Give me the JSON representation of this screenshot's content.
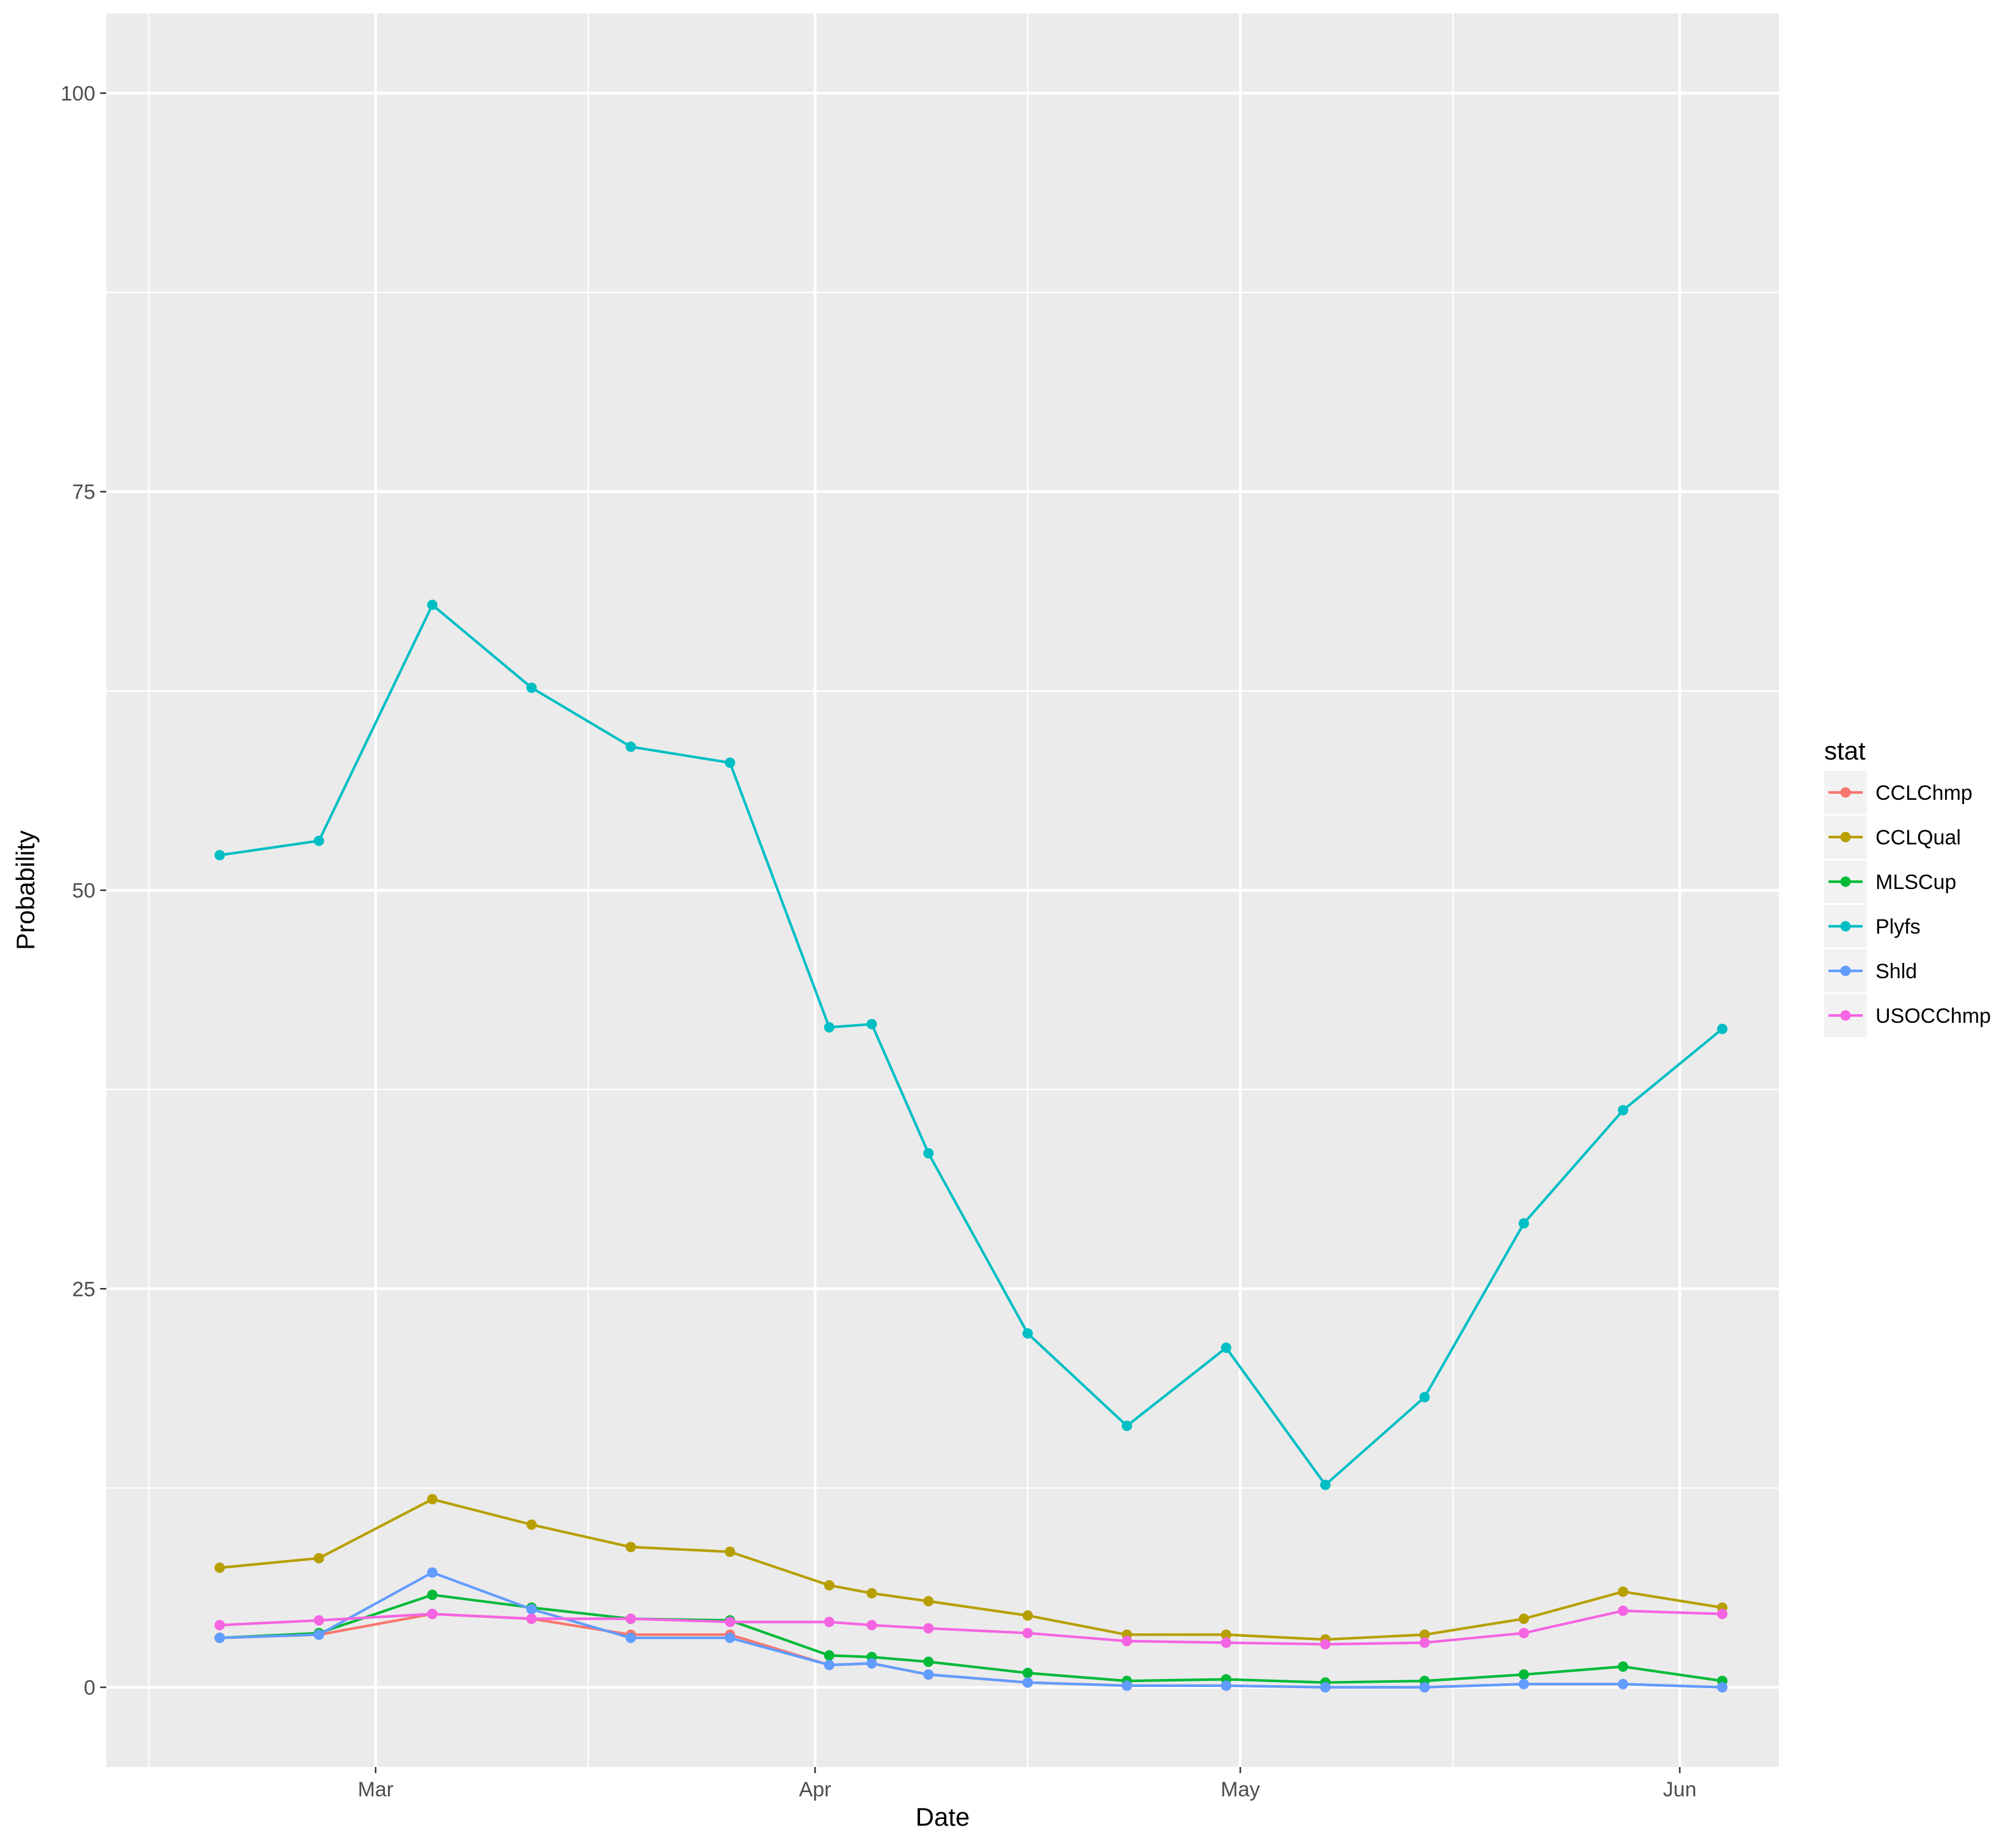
{
  "chart_data": {
    "type": "line",
    "xlabel": "Date",
    "ylabel": "Probability",
    "ylim": [
      -5,
      105
    ],
    "xlim": [
      "2017-02-10",
      "2017-06-08"
    ],
    "x_ticks": [
      {
        "date": "2017-03-01",
        "label": "Mar"
      },
      {
        "date": "2017-04-01",
        "label": "Apr"
      },
      {
        "date": "2017-05-01",
        "label": "May"
      },
      {
        "date": "2017-06-01",
        "label": "Jun"
      }
    ],
    "y_ticks": [
      0,
      25,
      50,
      75,
      100
    ],
    "grid": true,
    "legend": {
      "title": "stat",
      "placement": "right"
    },
    "x": [
      "2017-02-18",
      "2017-02-25",
      "2017-03-05",
      "2017-03-12",
      "2017-03-19",
      "2017-03-26",
      "2017-04-02",
      "2017-04-05",
      "2017-04-09",
      "2017-04-16",
      "2017-04-23",
      "2017-04-30",
      "2017-05-07",
      "2017-05-14",
      "2017-05-21",
      "2017-05-28",
      "2017-06-04"
    ],
    "series": [
      {
        "name": "CCLChmp",
        "color": "#F8766D",
        "values": [
          3.1,
          3.3,
          4.6,
          4.3,
          3.3,
          3.3,
          1.4,
          1.5,
          0.8,
          0.3,
          0.1,
          0.1,
          0.0,
          0.0,
          0.2,
          0.2,
          0.0
        ]
      },
      {
        "name": "CCLQual",
        "color": "#B79F00",
        "values": [
          7.5,
          8.1,
          11.8,
          10.2,
          8.8,
          8.5,
          6.4,
          5.9,
          5.4,
          4.5,
          3.3,
          3.3,
          3.0,
          3.3,
          4.3,
          6.0,
          5.0
        ]
      },
      {
        "name": "MLSCup",
        "color": "#00BA38",
        "values": [
          3.1,
          3.4,
          5.8,
          5.0,
          4.3,
          4.2,
          2.0,
          1.9,
          1.6,
          0.9,
          0.4,
          0.5,
          0.3,
          0.4,
          0.8,
          1.3,
          0.4
        ]
      },
      {
        "name": "Plyfs",
        "color": "#00BFC4",
        "values": [
          52.2,
          53.1,
          67.9,
          62.7,
          59.0,
          58.0,
          41.4,
          41.6,
          33.5,
          22.2,
          16.4,
          21.3,
          12.7,
          18.2,
          29.1,
          36.2,
          41.3
        ]
      },
      {
        "name": "Shld",
        "color": "#619CFF",
        "values": [
          3.1,
          3.3,
          7.2,
          4.9,
          3.1,
          3.1,
          1.4,
          1.5,
          0.8,
          0.3,
          0.1,
          0.1,
          0.0,
          0.0,
          0.2,
          0.2,
          0.0
        ]
      },
      {
        "name": "USOCChmp",
        "color": "#F564E3",
        "values": [
          3.9,
          4.2,
          4.6,
          4.3,
          4.3,
          4.1,
          4.1,
          3.9,
          3.7,
          3.4,
          2.9,
          2.8,
          2.7,
          2.8,
          3.4,
          4.8,
          4.6
        ]
      }
    ]
  }
}
